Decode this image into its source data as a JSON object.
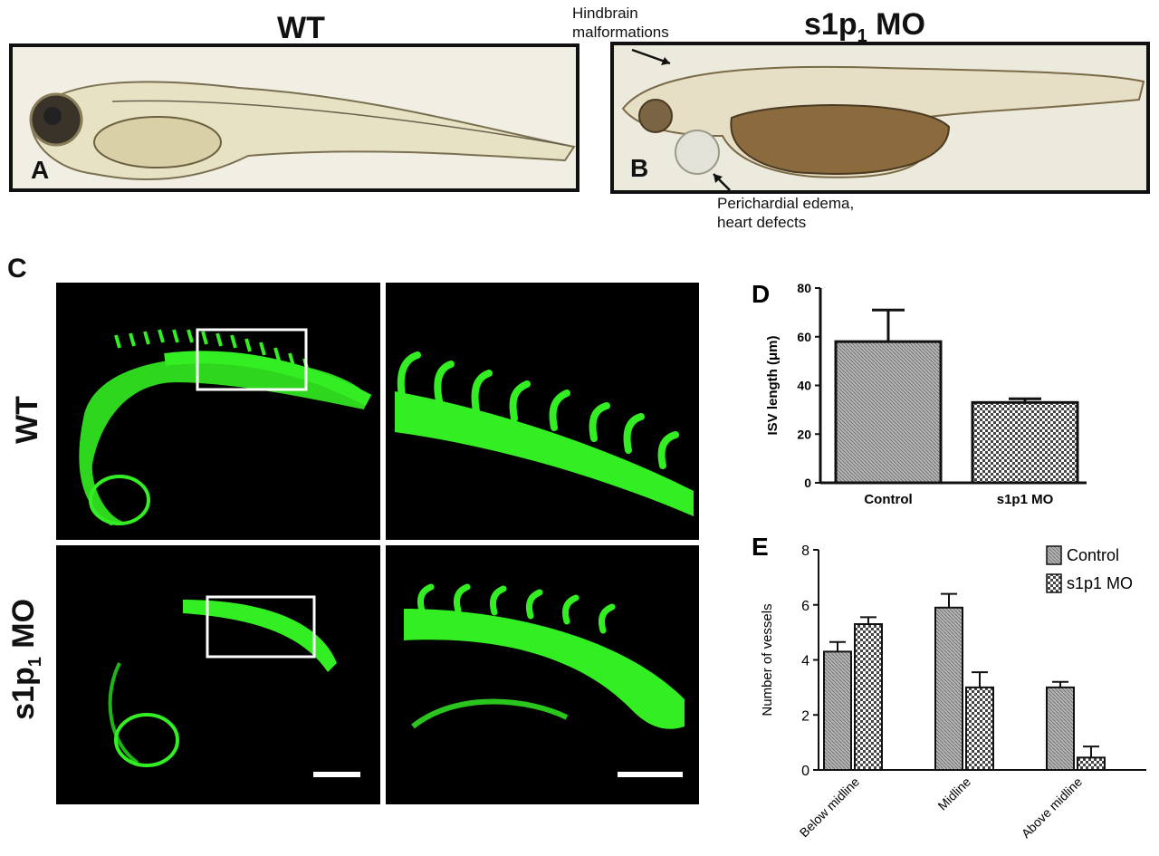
{
  "panel_a": {
    "title": "WT",
    "letter": "A"
  },
  "panel_b": {
    "title_main": "s1p",
    "title_sub": "1",
    "title_rest": " MO",
    "letter": "B",
    "annotation_top": [
      "Hindbrain",
      "malformations"
    ],
    "annotation_bottom": [
      "Perichardial edema,",
      "heart defects"
    ]
  },
  "panel_c": {
    "letter": "C",
    "row_labels": {
      "wt": "WT",
      "mo_main": "s1p",
      "mo_sub": "1",
      "mo_rest": " MO"
    }
  },
  "colors": {
    "fluorescence": "#33ee22",
    "bar_fill": "#9a9a9a",
    "frame": "#111111"
  },
  "chart_data": [
    {
      "panel": "D",
      "type": "bar",
      "categories": [
        "Control",
        "s1p1 MO"
      ],
      "values": [
        58,
        33
      ],
      "errors": [
        13,
        1.5
      ],
      "ylabel": "ISV length (μm)",
      "ylim": [
        0,
        80
      ],
      "yticks": [
        "0",
        "20",
        "40",
        "60",
        "80"
      ]
    },
    {
      "panel": "E",
      "type": "bar",
      "categories": [
        "Below midline",
        "Midline",
        "Above midline"
      ],
      "series": [
        {
          "name": "Control",
          "values": [
            4.3,
            5.9,
            3.0
          ],
          "errors": [
            0.35,
            0.5,
            0.2
          ]
        },
        {
          "name": "s1p1 MO",
          "values": [
            5.3,
            3.0,
            0.45
          ],
          "errors": [
            0.25,
            0.55,
            0.4
          ]
        }
      ],
      "ylabel": "Number of vessels",
      "ylim": [
        0,
        8
      ],
      "yticks": [
        "0",
        "2",
        "4",
        "6",
        "8"
      ],
      "legend": "top-right"
    }
  ]
}
